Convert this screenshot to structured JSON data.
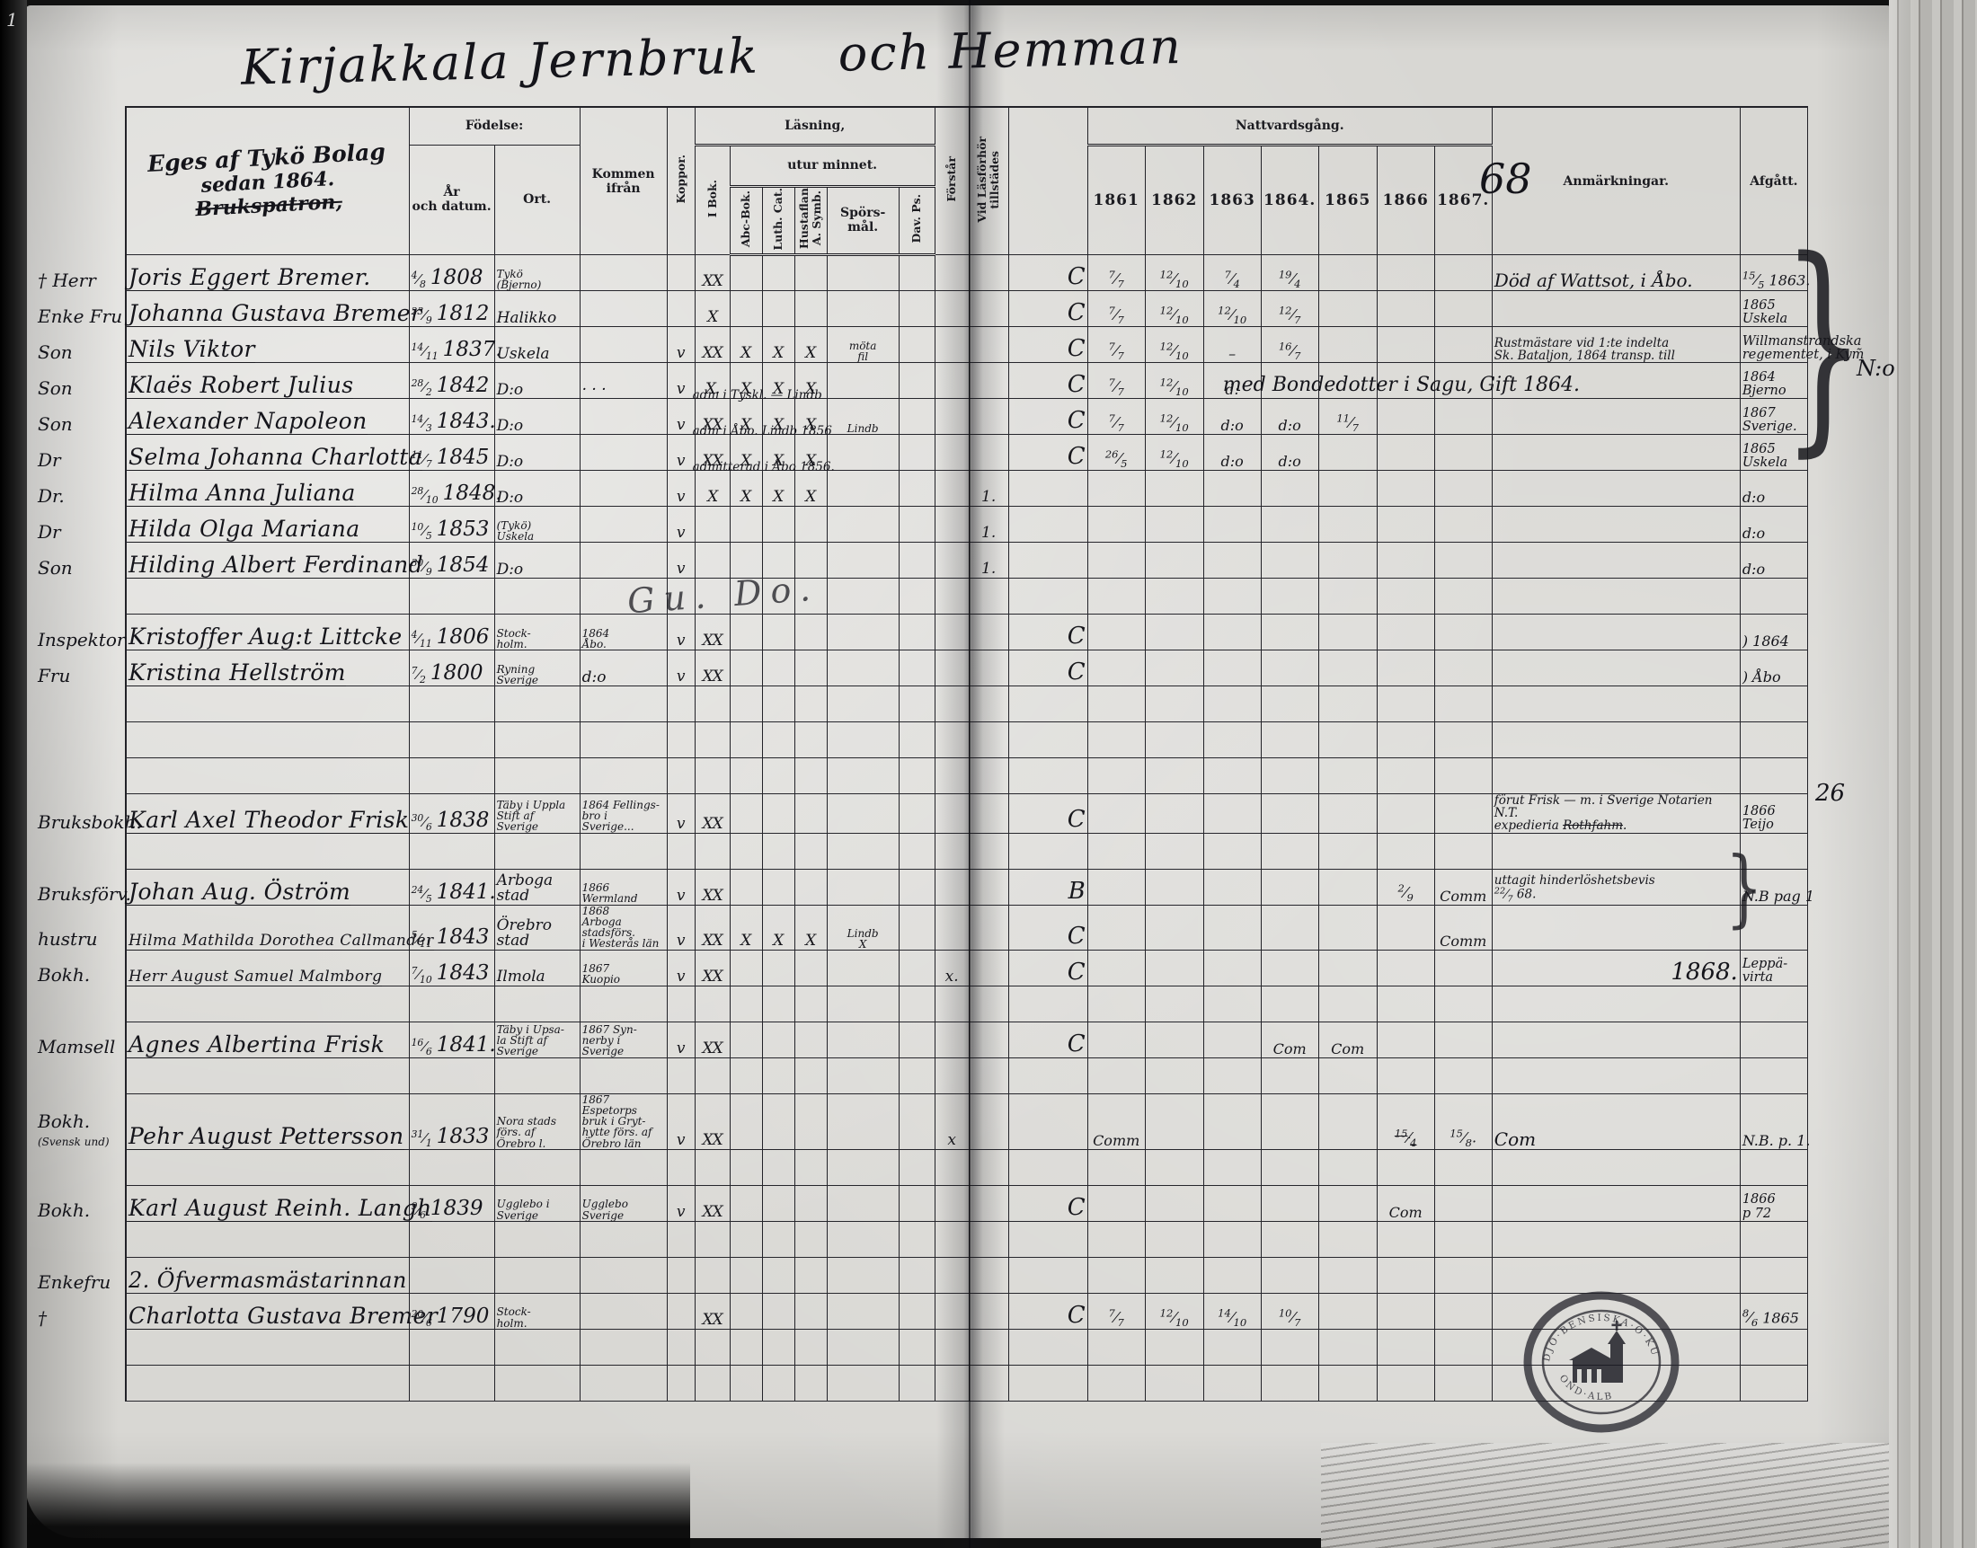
{
  "title": {
    "left": "Kirjakkala Jernbruk",
    "right": "och Hemman"
  },
  "page_number": "1",
  "owner_note": {
    "line1": "Eges af Tykö Bolag",
    "line2": "sedan 1864.",
    "line3": "Brukspatron,"
  },
  "header": {
    "fodelse": "Födelse:",
    "ar": "År\noch datum.",
    "ort": "Ort.",
    "kommen": "Kommen ifrån",
    "koppor": "Koppor.",
    "lasning": "Läsning,",
    "utur": "utur minnet.",
    "ibok": "I Bok.",
    "abc": "Abc-Bok.",
    "luth": "Luth. Cat.",
    "hust": "Hustaflan\nA. Symb.",
    "spors": "Spörs-\nmål.",
    "dav": "Dav. Ps.",
    "forstar": "Förstår",
    "vidlas": "Vid Läsförhör\ntillstädes",
    "nattvard": "Nattvardsgång.",
    "years": [
      "1861",
      "1862",
      "1863",
      "1864.",
      "1865",
      "1866",
      "1867."
    ],
    "year68": "68",
    "anm": "Anmärkningar.",
    "afg": "Afgått."
  },
  "overlays": {
    "no_label": "N:o",
    "page_ref_26": "26",
    "family_brace": "}",
    "nb_brace": "}",
    "inspektor_scrawl": "Gu. Do."
  },
  "stamp": {
    "arc_top": "DJO·BENSISKA·O·KU",
    "arc_bottom": "OND·ALB"
  },
  "rows": [
    {
      "kind": "entry",
      "m": "† Herr",
      "name": "Joris Eggert Bremer.",
      "df": "4/8",
      "dy": "1808",
      "ort": "Tykö\n(Bjerno)",
      "ibok": "XX",
      "pre": "C",
      "y61": "7/7",
      "y62": "12/10",
      "y63": "7/4",
      "y64": "19/4",
      "anm": "Död af Wattsot, i Åbo.",
      "afg": "15/5 1863."
    },
    {
      "kind": "entry",
      "m": "Enke Fru",
      "name": "Johanna Gustava Bremer",
      "df": "23/9",
      "dy": "1812",
      "ort": "Halikko",
      "ibok": "X",
      "pre": "C",
      "y61": "7/7",
      "y62": "12/10",
      "y63": "12/10",
      "y64": "12/7",
      "afg": "1865\nUskela"
    },
    {
      "kind": "entry",
      "m": "Son",
      "name": "Nils Viktor",
      "df": "14/11",
      "dy": "1837.",
      "ort": "Uskela",
      "kop": "v",
      "ibok": "XX",
      "abc": "X",
      "luth": "X",
      "hust": "X",
      "spors": "möta\nfil",
      "pre": "C",
      "y61": "7/7",
      "y62": "12/10",
      "y63": "–",
      "y64": "16/7",
      "anm": "Rustmästare vid 1:te indelta\nSk. Bataljon, 1864 transp. till",
      "afg": "Willmanstrandska\nregementet, i Kym̃"
    },
    {
      "kind": "entry",
      "m": "Son",
      "name": "Klaës Robert Julius",
      "df": "28/2",
      "dy": "1842",
      "ort": "D:o",
      "kf": "· · ·",
      "kop": "v",
      "ibok": "X.",
      "abc": "X",
      "luth": "X",
      "hust": "X",
      "note": "adm i Tyskl. — Lindb",
      "pre": "C",
      "y61": "7/7",
      "y62": "12/10",
      "y63": "d:",
      "anm": "med Bondedotter i Sagu, Gift 1864.",
      "anmleft": true,
      "afg": "1864\nBjerno"
    },
    {
      "kind": "entry",
      "m": "Son",
      "name": "Alexander Napoleon",
      "df": "14/3",
      "dy": "1843.",
      "ort": "D:o",
      "kop": "v",
      "ibok": "XX",
      "abc": "X",
      "luth": "X",
      "hust": "X",
      "spors": "Lindb",
      "note": "adm i Åbo. Lindb 1856",
      "pre": "C",
      "y61": "7/7",
      "y62": "12/10",
      "y63": "d:o",
      "y64": "d:o",
      "y65": "11/7",
      "afg": "1867\nSverige."
    },
    {
      "kind": "entry",
      "m": "Dr",
      "name": "Selma Johanna Charlotta",
      "df": "11/7",
      "dy": "1845",
      "ort": "D:o",
      "kop": "v",
      "ibok": "XX",
      "abc": "X",
      "luth": "X",
      "hust": "X",
      "note": "admitterad i Åbo 1856.",
      "pre": "C",
      "y61": "26/5",
      "y62": "12/10",
      "y63": "d:o",
      "y64": "d:o",
      "afg": "1865\nUskela"
    },
    {
      "kind": "entry",
      "m": "Dr.",
      "name": "Hilma Anna Juliana",
      "df": "28/10",
      "dy": "1848.",
      "ort": "D:o",
      "kop": "v",
      "ibok": "X",
      "abc": "X",
      "luth": "X",
      "hust": "X",
      "vid": "1.",
      "afg": "d:o"
    },
    {
      "kind": "entry",
      "m": "Dr",
      "name": "Hilda Olga Mariana",
      "df": "10/5",
      "dy": "1853",
      "ort": "(Tykö)\nUskela",
      "kop": "v",
      "vid": "1.",
      "afg": "d:o"
    },
    {
      "kind": "entry",
      "m": "Son",
      "name": "Hilding Albert Ferdinand",
      "df": "30/9",
      "dy": "1854",
      "ort": "D:o",
      "kop": "v",
      "vid": "1.",
      "afg": "d:o"
    },
    {
      "kind": "blank"
    },
    {
      "kind": "entry",
      "m": "Inspektor",
      "name": "Kristoffer Aug:t Littcke",
      "df": "4/11",
      "dy": "1806",
      "ort": "Stock-\nholm.",
      "kf": "1864\nÅbo.",
      "kop": "v",
      "ibok": "XX",
      "pre": "C",
      "afg": ") 1864"
    },
    {
      "kind": "entry",
      "m": "Fru",
      "name": "Kristina Hellström",
      "df": "7/2",
      "dy": "1800",
      "ort": "Ryning\nSverige",
      "kf": "d:o",
      "kop": "v",
      "ibok": "XX",
      "pre": "C",
      "afg": ") Åbo"
    },
    {
      "kind": "blank"
    },
    {
      "kind": "blank"
    },
    {
      "kind": "blank"
    },
    {
      "kind": "entry",
      "m": "Bruksbokh.",
      "name": "Karl Axel Theodor Frisk",
      "df": "30/6",
      "dy": "1838",
      "ort": "Täby i Uppla\nStift af\nSverige",
      "kf": "1864 Fellings-\nbro i\nSverige...",
      "kop": "v",
      "ibok": "XX",
      "pre": "C",
      "anm": "förut Frisk — m. i Sverige Notarien N.T.\nexpedieria ~Rothfahm~.",
      "afg": "1866\nTeijo"
    },
    {
      "kind": "blank"
    },
    {
      "kind": "entry",
      "m": "Bruksförv.",
      "name": "Johan Aug. Öström",
      "df": "24/5",
      "dy": "1841.",
      "ort": "Arboga stad",
      "kf": "1866\nWermland",
      "kop": "v",
      "ibok": "XX",
      "pre": "B",
      "y66": "2/9",
      "y67": "Comm",
      "anm": "uttagit hinderlöshetsbevis\n22/7 68.",
      "afg": "N.B pag 1"
    },
    {
      "kind": "entry",
      "m": "hustru",
      "name": "Hilma Mathilda Dorothea Callmander",
      "df": "5/11",
      "dy": "1843",
      "ort": "Örebro stad",
      "kf": "1868\nArboga stadsförs.\ni Westerås län",
      "kop": "v",
      "ibok": "XX",
      "abc": "X",
      "luth": "X",
      "hust": "X",
      "spors": "Lindb\nX",
      "pre": "C",
      "y67": "Comm"
    },
    {
      "kind": "entry",
      "m": "Bokh.",
      "name": "Herr August Samuel Malmborg",
      "df": "7/10",
      "dy": "1843",
      "ort": "Ilmola",
      "kf": "1867\nKuopio",
      "kop": "v",
      "ibok": "XX",
      "fors": "x.",
      "pre": "C",
      "anm": "1868.",
      "anmright": true,
      "afg": "Leppä-\nvirta"
    },
    {
      "kind": "blank"
    },
    {
      "kind": "entry",
      "m": "Mamsell",
      "name": "Agnes Albertina Frisk",
      "df": "16/6",
      "dy": "1841.",
      "ort": "Täby i Upsa-\nla Stift af\nSverige",
      "kf": "1867 Syn-\nnerby i\nSverige",
      "kop": "v",
      "ibok": "XX",
      "pre": "C",
      "y64": "Com",
      "y65": "Com"
    },
    {
      "kind": "blank"
    },
    {
      "kind": "entry",
      "m": "Bokh.",
      "m2": "(Svensk und)",
      "name": "Pehr August Pettersson",
      "df": "31/1",
      "dy": "1833",
      "ort": "Nora stads\nförs. af\nÖrebro l.",
      "kf": "1867 Espetorps\nbruk i Gryt-\nhytte förs. af\nÖrebro län",
      "kop": "v",
      "ibok": "XX",
      "fors": "x",
      "y61": "Comm",
      "y66": "~15/4~",
      "y67": "15/8.",
      "anm": "Com",
      "afg": "N.B. p. 1."
    },
    {
      "kind": "blank"
    },
    {
      "kind": "entry",
      "m": "Bokh.",
      "name": "Karl August Reinh. Langh",
      "df": "9/6",
      "dy": "1839",
      "ort": "Ugglebo i\nSverige",
      "kf": "Ugglebo\nSverige",
      "kop": "v",
      "ibok": "XX",
      "pre": "C",
      "y66": "Com",
      "afg": "1866\np 72"
    },
    {
      "kind": "blank"
    },
    {
      "kind": "section",
      "m": "Enkefru",
      "name": "2. Öfvermasmästarinnan"
    },
    {
      "kind": "entry",
      "m": "†",
      "name": "Charlotta Gustava Bremer",
      "df": "20/6",
      "dy": "1790",
      "ort": "Stock-\nholm.",
      "ibok": "XX",
      "pre": "C",
      "y61": "7/7",
      "y62": "12/10",
      "y63": "14/10",
      "y64": "10/7",
      "afg": "8/6 1865"
    },
    {
      "kind": "blank"
    },
    {
      "kind": "blank"
    }
  ]
}
